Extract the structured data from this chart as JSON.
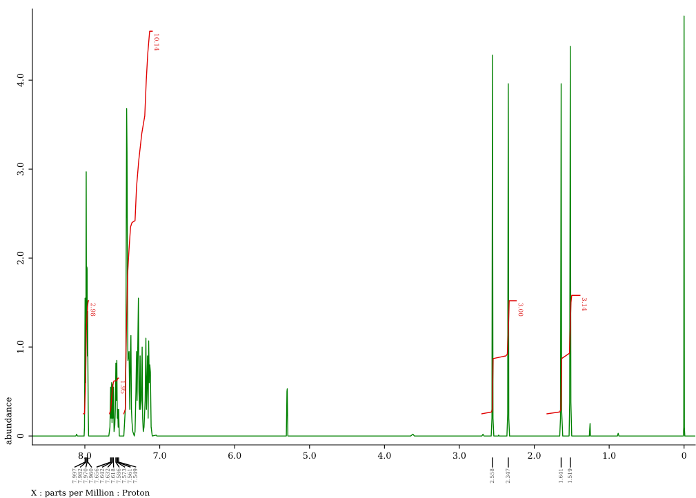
{
  "chart_data": {
    "type": "line",
    "xlabel": "X : parts per Million : Proton",
    "ylabel": "abundance",
    "xlim": [
      8.7,
      -0.15
    ],
    "ylim": [
      -0.1,
      4.8
    ],
    "xticks": [
      {
        "value": 8.0,
        "label": "8.0"
      },
      {
        "value": 7.0,
        "label": "7.0"
      },
      {
        "value": 6.0,
        "label": "6.0"
      },
      {
        "value": 5.0,
        "label": "5.0"
      },
      {
        "value": 4.0,
        "label": "4.0"
      },
      {
        "value": 3.0,
        "label": "3.0"
      },
      {
        "value": 2.0,
        "label": "2.0"
      },
      {
        "value": 1.0,
        "label": "1.0"
      },
      0
    ],
    "yticks": [
      0,
      {
        "value": 1.0,
        "label": "1.0"
      },
      {
        "value": 2.0,
        "label": "2.0"
      },
      {
        "value": 3.0,
        "label": "3.0"
      },
      {
        "value": 4.0,
        "label": "4.0"
      }
    ],
    "grid": false,
    "marker": "none",
    "line_style": "solid",
    "series": [
      {
        "color": "#008000",
        "x": [
          8.7,
          8.12,
          8.11,
          8.1,
          8.01,
          8.005,
          7.997,
          7.99,
          7.985,
          7.982,
          7.978,
          7.973,
          7.97,
          7.966,
          7.963,
          7.96,
          7.955,
          7.95,
          7.68,
          7.665,
          7.656,
          7.65,
          7.642,
          7.637,
          7.632,
          7.625,
          7.618,
          7.61,
          7.6,
          7.593,
          7.586,
          7.58,
          7.573,
          7.567,
          7.561,
          7.555,
          7.549,
          7.54,
          7.48,
          7.46,
          7.452,
          7.447,
          7.442,
          7.437,
          7.43,
          7.425,
          7.418,
          7.41,
          7.4,
          7.392,
          7.385,
          7.378,
          7.37,
          7.36,
          7.34,
          7.33,
          7.318,
          7.31,
          7.303,
          7.295,
          7.285,
          7.278,
          7.27,
          7.262,
          7.255,
          7.245,
          7.235,
          7.228,
          7.22,
          7.21,
          7.195,
          7.185,
          7.178,
          7.17,
          7.163,
          7.155,
          7.148,
          7.14,
          7.133,
          7.125,
          7.115,
          7.1,
          7.05,
          7.04,
          5.31,
          5.302,
          5.298,
          5.29,
          3.65,
          3.62,
          3.6,
          2.7,
          2.685,
          2.67,
          2.575,
          2.565,
          2.558,
          2.551,
          2.54,
          2.48,
          2.475,
          2.47,
          2.365,
          2.355,
          2.347,
          2.34,
          2.33,
          1.66,
          1.65,
          1.645,
          1.641,
          1.635,
          1.62,
          1.535,
          1.527,
          1.519,
          1.511,
          1.5,
          1.265,
          1.255,
          1.25,
          0.89,
          0.88,
          0.87,
          0.01,
          0.004,
          0.0,
          -0.004,
          -0.01,
          -0.15
        ],
        "values": [
          0,
          0,
          0.02,
          0,
          0,
          0.1,
          1.55,
          0.6,
          1.6,
          2.97,
          1.2,
          1.9,
          1.88,
          0.9,
          1.4,
          0.9,
          0.3,
          0,
          0,
          0.1,
          0.55,
          0.2,
          0.6,
          0.15,
          0.58,
          0.2,
          0.55,
          0.05,
          0.12,
          0.3,
          0.82,
          0.4,
          0.85,
          0.2,
          0.3,
          0.1,
          0.3,
          0,
          0,
          0.3,
          0.9,
          2.4,
          3.68,
          3.2,
          1.5,
          0.85,
          0.9,
          0.95,
          0.3,
          0.9,
          1.13,
          0.3,
          0.15,
          0.05,
          0,
          0.05,
          0.5,
          0.95,
          0.4,
          0.9,
          1.55,
          0.5,
          0.3,
          0.9,
          0.3,
          0.4,
          1.0,
          0.2,
          0.05,
          0.1,
          0.4,
          1.1,
          0.3,
          0.6,
          0.9,
          0.2,
          1.07,
          0.6,
          0.8,
          0.72,
          0.1,
          0,
          0.01,
          0,
          0,
          0.5,
          0.53,
          0,
          0,
          0.02,
          0,
          0,
          0.02,
          0,
          0,
          0.2,
          4.28,
          0.2,
          0,
          0,
          0.01,
          0,
          0,
          0.25,
          3.96,
          0.2,
          0,
          0,
          0.2,
          2.08,
          3.96,
          0.3,
          0,
          0,
          0.38,
          4.38,
          0.38,
          0,
          0,
          0.14,
          0,
          0,
          0.03,
          0,
          0,
          0.1,
          4.72,
          0.1,
          0,
          0
        ]
      },
      {
        "color": "#e00000",
        "x": [
          8.02,
          8.005,
          7.99,
          7.98,
          7.965,
          7.955,
          7.95
        ],
        "values": [
          0.25,
          0.25,
          0.6,
          1.2,
          1.45,
          1.52,
          1.52
        ]
      },
      {
        "color": "#e00000",
        "x": [
          7.67,
          7.655,
          7.635,
          7.62,
          7.61,
          7.59,
          7.575,
          7.56,
          7.55
        ],
        "values": [
          0.25,
          0.3,
          0.5,
          0.6,
          0.62,
          0.62,
          0.62,
          0.65,
          0.65
        ]
      },
      {
        "color": "#e00000",
        "x": [
          7.48,
          7.46,
          7.45,
          7.43,
          7.41,
          7.39,
          7.37,
          7.33,
          7.31,
          7.28,
          7.24,
          7.22,
          7.2,
          7.18,
          7.16,
          7.135,
          7.1
        ],
        "values": [
          0.25,
          0.3,
          1.0,
          1.8,
          2.1,
          2.35,
          2.4,
          2.42,
          2.8,
          3.1,
          3.4,
          3.5,
          3.6,
          4.0,
          4.3,
          4.55,
          4.55
        ]
      },
      {
        "color": "#e00000",
        "x": [
          2.7,
          2.57,
          2.56,
          2.55,
          2.38,
          2.36,
          2.345,
          2.335,
          2.24
        ],
        "values": [
          0.25,
          0.27,
          0.3,
          0.87,
          0.9,
          0.92,
          1.2,
          1.52,
          1.52
        ]
      },
      {
        "color": "#e00000",
        "x": [
          1.83,
          1.66,
          1.645,
          1.635,
          1.53,
          1.52,
          1.51,
          1.5,
          1.39
        ],
        "values": [
          0.25,
          0.27,
          0.3,
          0.87,
          0.93,
          1.2,
          1.5,
          1.58,
          1.58
        ]
      }
    ],
    "annotations": [
      {
        "text": "2.98",
        "x": 7.95,
        "y": 1.52
      },
      {
        "text": "1.95",
        "x": 7.55,
        "y": 0.65
      },
      {
        "text": "10.14",
        "x": 7.1,
        "y": 4.55
      },
      {
        "text": "3.00",
        "x": 2.24,
        "y": 1.52
      },
      {
        "text": "3.14",
        "x": 1.39,
        "y": 1.58
      },
      {
        "text": "7.997",
        "x": 7.997
      },
      {
        "text": "7.982",
        "x": 7.982
      },
      {
        "text": "7.970",
        "x": 7.97
      },
      {
        "text": "7.960",
        "x": 7.96
      },
      {
        "text": "7.656",
        "x": 7.656
      },
      {
        "text": "7.642",
        "x": 7.642
      },
      {
        "text": "7.632",
        "x": 7.632
      },
      {
        "text": "7.618",
        "x": 7.618
      },
      {
        "text": "7.586",
        "x": 7.586
      },
      {
        "text": "7.573",
        "x": 7.573
      },
      {
        "text": "7.561",
        "x": 7.561
      },
      {
        "text": "7.549",
        "x": 7.549
      },
      {
        "text": "2.558",
        "x": 2.558
      },
      {
        "text": "2.347",
        "x": 2.347
      },
      {
        "text": "1.641",
        "x": 1.641
      },
      {
        "text": "1.519",
        "x": 1.519
      }
    ]
  }
}
